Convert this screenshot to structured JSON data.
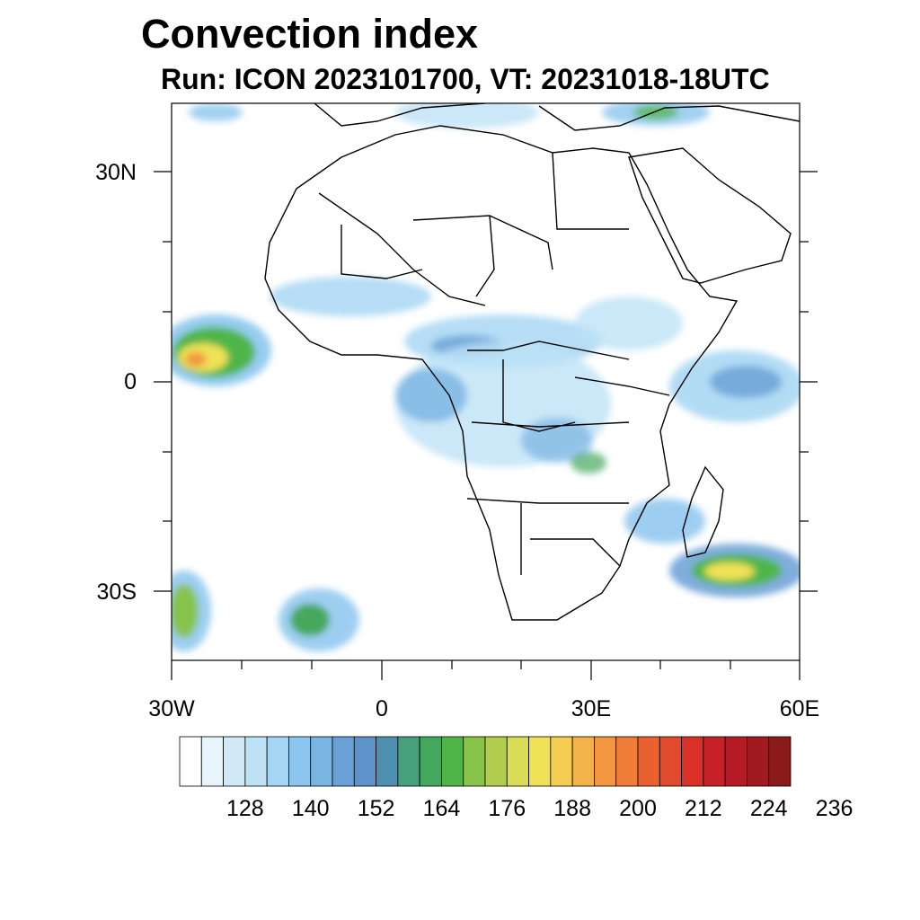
{
  "title": "Convection index",
  "subtitle": "Run: ICON 2023101700,  VT: 20231018-18UTC",
  "map": {
    "type": "heatmap",
    "variable": "Convection index",
    "region": "Africa",
    "lon_range": [
      -30,
      60
    ],
    "lat_range": [
      -40,
      40
    ],
    "lat_labels": [
      "30N",
      "0",
      "30S"
    ],
    "lon_labels": [
      "30W",
      "0",
      "30E",
      "60E"
    ]
  },
  "colorbar": {
    "labels": [
      "128",
      "140",
      "152",
      "164",
      "176",
      "188",
      "200",
      "212",
      "224",
      "236"
    ],
    "colors": [
      "#ffffff",
      "#e8f4fb",
      "#d1e9f7",
      "#bde2f6",
      "#a4d5f2",
      "#8cc6ee",
      "#79b4e2",
      "#6aa0d6",
      "#5d93c8",
      "#4f8fb0",
      "#47a07c",
      "#44a85c",
      "#50b548",
      "#87c349",
      "#b2cd4e",
      "#d9dc55",
      "#efe258",
      "#f5cd52",
      "#f4b24a",
      "#f29640",
      "#ef7c37",
      "#ea6130",
      "#e14a2b",
      "#d93128",
      "#c72027",
      "#b51b24",
      "#a01a20",
      "#8b1a1a"
    ]
  }
}
